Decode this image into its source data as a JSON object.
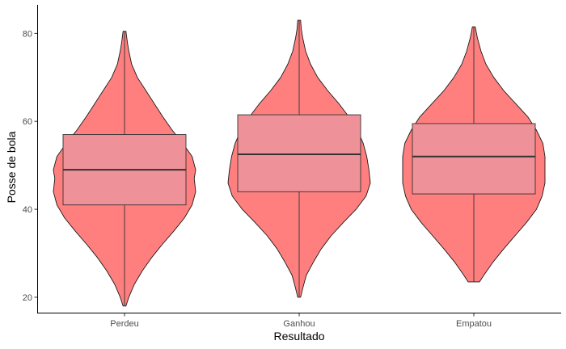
{
  "chart_data": {
    "type": "violin",
    "xlabel": "Resultado",
    "ylabel": "Posse de bola",
    "ylim": [
      16.5,
      86.5
    ],
    "yticks": [
      20,
      40,
      60,
      80
    ],
    "grid": false,
    "colors": {
      "violin_fill": "#ff7f7f",
      "box_fill": "#ee9198",
      "outline": "#1a1a1a"
    },
    "categories": [
      "Perdeu",
      "Ganhou",
      "Empatou"
    ],
    "groups": [
      {
        "label": "Perdeu",
        "min": 18.0,
        "q1": 41.0,
        "median": 49.0,
        "q3": 57.0,
        "max": 80.5,
        "density": [
          [
            18.0,
            0.02
          ],
          [
            20,
            0.06
          ],
          [
            23,
            0.14
          ],
          [
            26,
            0.25
          ],
          [
            29,
            0.38
          ],
          [
            32,
            0.53
          ],
          [
            35,
            0.69
          ],
          [
            38,
            0.84
          ],
          [
            41,
            0.95
          ],
          [
            44,
            1.0
          ],
          [
            47,
            0.98
          ],
          [
            49,
            1.0
          ],
          [
            52,
            0.95
          ],
          [
            55,
            0.82
          ],
          [
            58,
            0.67
          ],
          [
            61,
            0.54
          ],
          [
            64,
            0.42
          ],
          [
            67,
            0.3
          ],
          [
            70,
            0.18
          ],
          [
            73,
            0.1
          ],
          [
            76,
            0.06
          ],
          [
            78,
            0.04
          ],
          [
            80.5,
            0.02
          ]
        ]
      },
      {
        "label": "Ganhou",
        "min": 20.0,
        "q1": 44.0,
        "median": 52.5,
        "q3": 61.5,
        "max": 83.0,
        "density": [
          [
            20.0,
            0.02
          ],
          [
            22,
            0.05
          ],
          [
            25,
            0.1
          ],
          [
            28,
            0.2
          ],
          [
            31,
            0.31
          ],
          [
            34,
            0.45
          ],
          [
            37,
            0.62
          ],
          [
            40,
            0.8
          ],
          [
            43,
            0.94
          ],
          [
            46,
            1.0
          ],
          [
            49,
            0.98
          ],
          [
            52,
            0.95
          ],
          [
            55,
            0.9
          ],
          [
            58,
            0.82
          ],
          [
            61,
            0.7
          ],
          [
            64,
            0.56
          ],
          [
            67,
            0.4
          ],
          [
            70,
            0.26
          ],
          [
            73,
            0.16
          ],
          [
            76,
            0.09
          ],
          [
            79,
            0.05
          ],
          [
            81,
            0.03
          ],
          [
            83.0,
            0.02
          ]
        ]
      },
      {
        "label": "Empatou",
        "min": 23.5,
        "q1": 43.5,
        "median": 52.0,
        "q3": 59.5,
        "max": 81.5,
        "density": [
          [
            23.5,
            0.08
          ],
          [
            25,
            0.14
          ],
          [
            28,
            0.27
          ],
          [
            31,
            0.42
          ],
          [
            34,
            0.58
          ],
          [
            37,
            0.74
          ],
          [
            40,
            0.88
          ],
          [
            43,
            0.96
          ],
          [
            46,
            1.0
          ],
          [
            49,
            1.0
          ],
          [
            52,
            1.0
          ],
          [
            55,
            0.97
          ],
          [
            58,
            0.88
          ],
          [
            61,
            0.76
          ],
          [
            64,
            0.59
          ],
          [
            67,
            0.42
          ],
          [
            70,
            0.28
          ],
          [
            73,
            0.17
          ],
          [
            76,
            0.1
          ],
          [
            79,
            0.05
          ],
          [
            81.5,
            0.02
          ]
        ]
      }
    ]
  }
}
